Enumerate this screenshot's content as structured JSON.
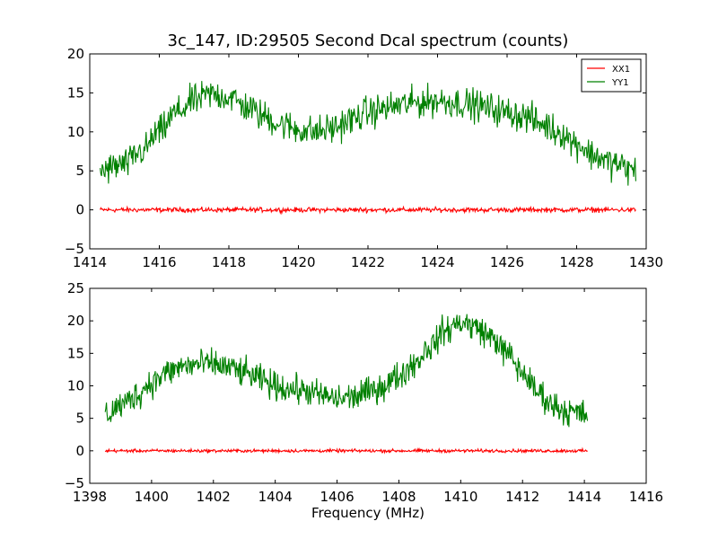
{
  "figure": {
    "title": "3c_147, ID:29505 Second Dcal spectrum (counts)",
    "xlabel": "Frequency (MHz)"
  },
  "chart_data": [
    {
      "type": "line",
      "title": "3c_147, ID:29505 Second Dcal spectrum (counts)",
      "xlabel": "",
      "ylabel": "",
      "xlim": [
        1414,
        1430
      ],
      "ylim": [
        -5,
        20
      ],
      "xticks": [
        1414,
        1416,
        1418,
        1420,
        1422,
        1424,
        1426,
        1428,
        1430
      ],
      "yticks": [
        -5,
        0,
        5,
        10,
        15,
        20
      ],
      "grid": false,
      "legend": {
        "placement": "top-right",
        "entries": [
          "XX1",
          "YY1"
        ]
      },
      "series": [
        {
          "name": "XX1",
          "color": "#ff0000",
          "x": [
            1414.3,
            1429.7
          ],
          "y": [
            0.0,
            0.0
          ],
          "noise": 0.15
        },
        {
          "name": "YY1",
          "color": "#008000",
          "x": [
            1414.3,
            1415.0,
            1415.5,
            1416.0,
            1416.5,
            1417.0,
            1417.5,
            1418.0,
            1418.5,
            1419.0,
            1419.5,
            1420.0,
            1420.5,
            1421.0,
            1421.5,
            1422.0,
            1422.5,
            1423.0,
            1423.5,
            1424.0,
            1424.5,
            1425.0,
            1425.5,
            1426.0,
            1426.5,
            1427.0,
            1427.5,
            1428.0,
            1428.5,
            1429.0,
            1429.7
          ],
          "y": [
            5.0,
            5.8,
            7.5,
            10.0,
            12.5,
            14.0,
            14.8,
            14.5,
            13.2,
            12.0,
            11.0,
            10.3,
            10.0,
            10.5,
            11.5,
            12.5,
            13.0,
            13.5,
            13.8,
            14.0,
            13.8,
            13.5,
            13.0,
            12.5,
            12.0,
            11.0,
            10.0,
            8.5,
            7.0,
            6.0,
            5.0
          ],
          "noise": 1.0
        }
      ]
    },
    {
      "type": "line",
      "title": "",
      "xlabel": "Frequency (MHz)",
      "ylabel": "",
      "xlim": [
        1398,
        1416
      ],
      "ylim": [
        -5,
        25
      ],
      "xticks": [
        1398,
        1400,
        1402,
        1404,
        1406,
        1408,
        1410,
        1412,
        1414,
        1416
      ],
      "yticks": [
        -5,
        0,
        5,
        10,
        15,
        20,
        25
      ],
      "grid": false,
      "series": [
        {
          "name": "XX1",
          "color": "#ff0000",
          "x": [
            1398.5,
            1414.1
          ],
          "y": [
            0.0,
            0.0
          ],
          "noise": 0.12
        },
        {
          "name": "YY1",
          "color": "#008000",
          "x": [
            1398.5,
            1399.0,
            1399.5,
            1400.0,
            1400.5,
            1401.0,
            1401.5,
            1402.0,
            1402.5,
            1403.0,
            1403.5,
            1404.0,
            1404.5,
            1405.0,
            1405.5,
            1406.0,
            1406.5,
            1407.0,
            1407.5,
            1408.0,
            1408.5,
            1409.0,
            1409.5,
            1410.0,
            1410.5,
            1411.0,
            1411.5,
            1412.0,
            1412.5,
            1413.0,
            1413.5,
            1414.1
          ],
          "y": [
            5.5,
            7.0,
            8.5,
            10.5,
            12.0,
            13.0,
            13.3,
            13.3,
            12.8,
            12.0,
            11.0,
            10.0,
            9.5,
            9.2,
            8.5,
            8.0,
            8.3,
            9.0,
            10.0,
            11.5,
            13.5,
            16.0,
            18.5,
            19.8,
            19.0,
            17.5,
            15.0,
            12.0,
            9.0,
            7.0,
            6.0,
            5.5
          ],
          "noise": 1.1
        }
      ]
    }
  ]
}
